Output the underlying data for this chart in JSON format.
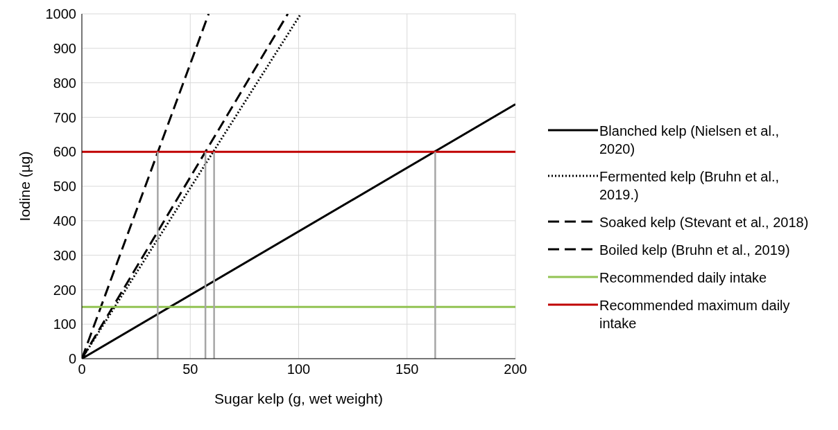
{
  "chart_data": {
    "type": "line",
    "xlabel": "Sugar kelp (g, wet weight)",
    "ylabel": "Iodine (µg)",
    "xlim": [
      0,
      200
    ],
    "xticks": [
      0,
      50,
      100,
      150,
      200
    ],
    "ylim": [
      0,
      1000
    ],
    "yticks": [
      0,
      100,
      200,
      300,
      400,
      500,
      600,
      700,
      800,
      900,
      1000
    ],
    "grid": true,
    "legend": "right",
    "marker": "none",
    "series": [
      {
        "name": "Blanched kelp (Nielsen et al., 2020)",
        "color": "#000000",
        "line_style": "solid",
        "x": [
          0,
          200
        ],
        "values": [
          0,
          738
        ]
      },
      {
        "name": "Fermented kelp (Bruhn et al., 2019.)",
        "color": "#000000",
        "line_style": "dotted",
        "x": [
          0,
          101
        ],
        "values": [
          0,
          1000
        ]
      },
      {
        "name": "Soaked kelp (Stevant et al., 2018)",
        "color": "#000000",
        "line_style": "dashed",
        "x": [
          0,
          95
        ],
        "values": [
          0,
          1000
        ]
      },
      {
        "name": "Boiled kelp (Bruhn et al., 2019)",
        "color": "#000000",
        "line_style": "dashed",
        "x": [
          0,
          58.5
        ],
        "values": [
          0,
          1000
        ]
      },
      {
        "name": "Recommended daily intake",
        "color": "#92c353",
        "line_style": "solid",
        "x": [
          0,
          200
        ],
        "values": [
          150,
          150
        ]
      },
      {
        "name": "Recommended maximum daily intake",
        "color": "#c00000",
        "line_style": "solid",
        "x": [
          0,
          200
        ],
        "values": [
          600,
          600
        ]
      },
      {
        "color": "#a6a6a6",
        "line_style": "solid",
        "x": [
          35,
          35
        ],
        "values": [
          0,
          600
        ]
      },
      {
        "color": "#a6a6a6",
        "line_style": "solid",
        "x": [
          57,
          57
        ],
        "values": [
          0,
          600
        ]
      },
      {
        "color": "#a6a6a6",
        "line_style": "solid",
        "x": [
          61,
          61
        ],
        "values": [
          0,
          600
        ]
      },
      {
        "color": "#a6a6a6",
        "line_style": "solid",
        "x": [
          163,
          163
        ],
        "values": [
          0,
          600
        ]
      }
    ]
  }
}
